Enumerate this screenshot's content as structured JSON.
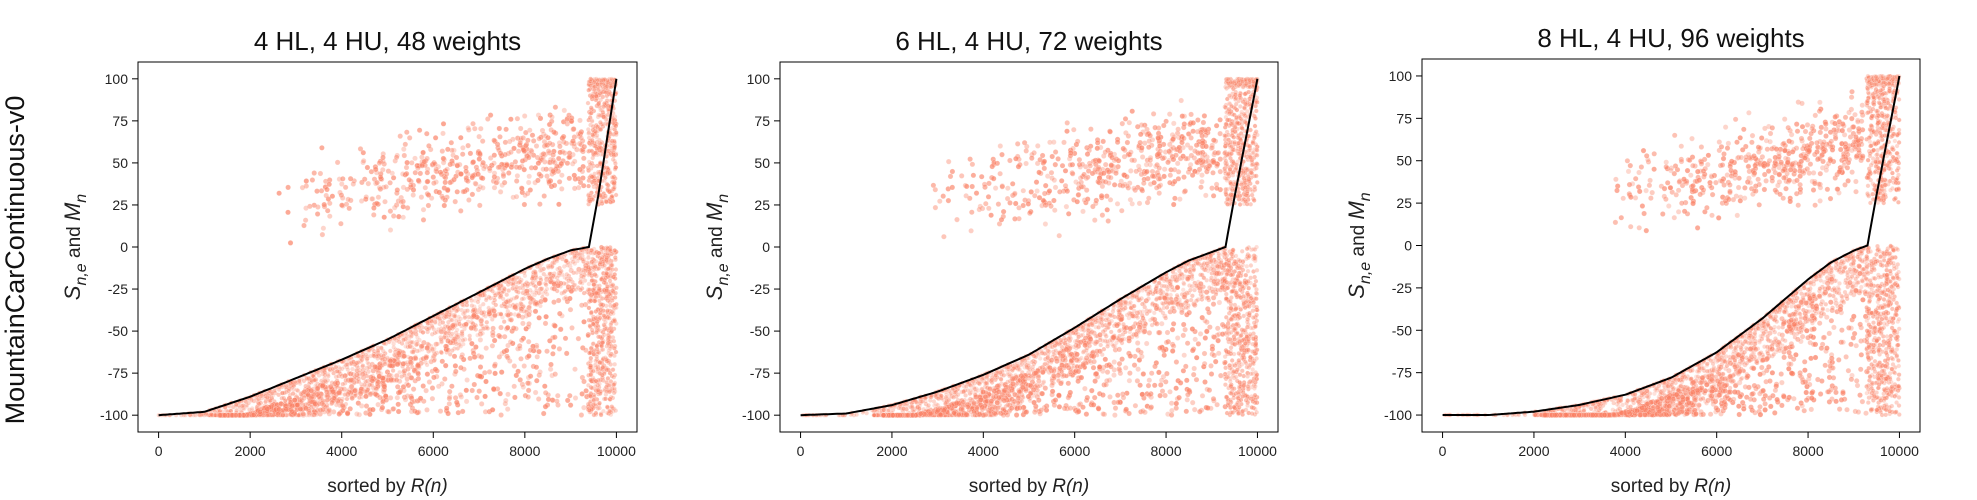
{
  "figure": {
    "row_label": "MountainCarContinuous-v0"
  },
  "colors": {
    "scatter": "#fa8064",
    "mean_line": "#000000",
    "frame": "#000000"
  },
  "chart_data": [
    {
      "type": "scatter",
      "title": "4 HL, 4 HU, 48 weights",
      "xlabel": "sorted by R(n)",
      "xlabel_prefix": "sorted by ",
      "xlabel_math": "R(n)",
      "ylabel": "S_{n,e} and M_n",
      "ylabel_parts": {
        "s": "S",
        "s_sub": "n,e",
        "and": " and ",
        "m": "M",
        "m_sub": "n"
      },
      "xlim": [
        -450,
        10450
      ],
      "ylim": [
        -110,
        110
      ],
      "xticks": [
        0,
        2000,
        4000,
        6000,
        8000,
        10000
      ],
      "yticks": [
        -100,
        -75,
        -50,
        -25,
        0,
        25,
        50,
        75,
        100
      ],
      "grid": false,
      "transition_x": 9400,
      "band_start_x": 1100,
      "upper_cluster": {
        "x_range": [
          2500,
          9300
        ],
        "y_start": 25,
        "y_end": 60
      },
      "series": [
        {
          "name": "M_n",
          "x": [
            0,
            1000,
            2000,
            3000,
            4000,
            5000,
            6000,
            7000,
            8000,
            8500,
            9000,
            9400,
            9600,
            9800,
            10000
          ],
          "y": [
            -100,
            -98,
            -89,
            -78,
            -67,
            -55,
            -41,
            -27,
            -13,
            -7,
            -2,
            0,
            30,
            65,
            100
          ]
        }
      ]
    },
    {
      "type": "scatter",
      "title": "6 HL, 4 HU, 72 weights",
      "xlabel": "sorted by R(n)",
      "xlabel_prefix": "sorted by ",
      "xlabel_math": "R(n)",
      "ylabel": "S_{n,e} and M_n",
      "ylabel_parts": {
        "s": "S",
        "s_sub": "n,e",
        "and": " and ",
        "m": "M",
        "m_sub": "n"
      },
      "xlim": [
        -450,
        10450
      ],
      "ylim": [
        -110,
        110
      ],
      "xticks": [
        0,
        2000,
        4000,
        6000,
        8000,
        10000
      ],
      "yticks": [
        -100,
        -75,
        -50,
        -25,
        0,
        25,
        50,
        75,
        100
      ],
      "grid": false,
      "transition_x": 9300,
      "band_start_x": 1600,
      "upper_cluster": {
        "x_range": [
          2800,
          9200
        ],
        "y_start": 25,
        "y_end": 60
      },
      "series": [
        {
          "name": "M_n",
          "x": [
            0,
            1000,
            2000,
            3000,
            4000,
            5000,
            6000,
            7000,
            8000,
            8500,
            9000,
            9300,
            9500,
            9750,
            10000
          ],
          "y": [
            -100,
            -99,
            -94,
            -86,
            -76,
            -64,
            -48,
            -31,
            -15,
            -8,
            -3,
            0,
            30,
            65,
            100
          ]
        }
      ]
    },
    {
      "type": "scatter",
      "title": "8 HL, 4 HU, 96 weights",
      "xlabel": "sorted by R(n)",
      "xlabel_prefix": "sorted by ",
      "xlabel_math": "R(n)",
      "ylabel": "S_{n,e} and M_n",
      "ylabel_parts": {
        "s": "S",
        "s_sub": "n,e",
        "and": " and ",
        "m": "M",
        "m_sub": "n"
      },
      "xlim": [
        -450,
        10450
      ],
      "ylim": [
        -110,
        110
      ],
      "xticks": [
        0,
        2000,
        4000,
        6000,
        8000,
        10000
      ],
      "yticks": [
        -100,
        -75,
        -50,
        -25,
        0,
        25,
        50,
        75,
        100
      ],
      "grid": false,
      "transition_x": 9300,
      "band_start_x": 2000,
      "upper_cluster": {
        "x_range": [
          3700,
          9200
        ],
        "y_start": 30,
        "y_end": 60
      },
      "series": [
        {
          "name": "M_n",
          "x": [
            0,
            1000,
            2000,
            3000,
            4000,
            5000,
            6000,
            7000,
            8000,
            8500,
            9000,
            9300,
            9500,
            9750,
            10000
          ],
          "y": [
            -100,
            -100,
            -98,
            -94,
            -88,
            -78,
            -63,
            -43,
            -20,
            -10,
            -3,
            0,
            30,
            65,
            100
          ]
        }
      ]
    }
  ]
}
